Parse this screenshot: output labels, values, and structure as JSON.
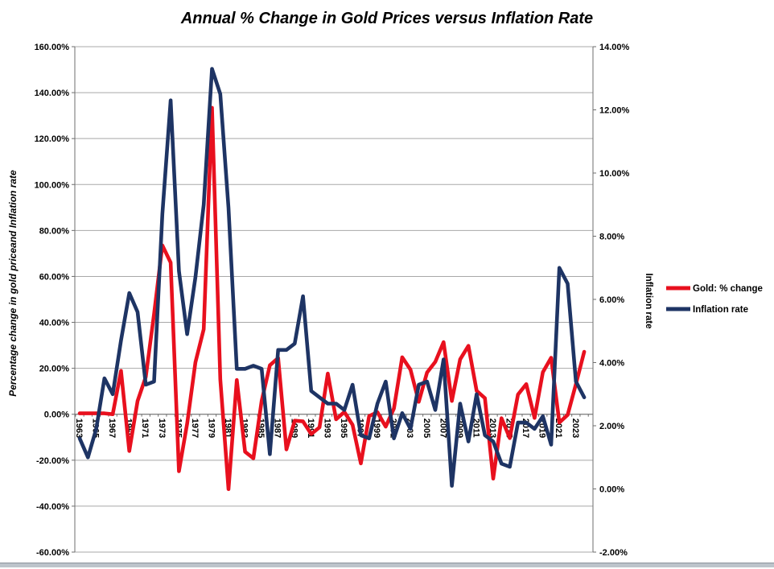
{
  "title": "Annual % Change in Gold Prices versus Inflation Rate",
  "chart_data": {
    "type": "line",
    "title": "Annual % Change in Gold Prices versus Inflation Rate",
    "years": [
      1963,
      1964,
      1965,
      1966,
      1967,
      1968,
      1969,
      1970,
      1971,
      1972,
      1973,
      1974,
      1975,
      1976,
      1977,
      1978,
      1979,
      1980,
      1981,
      1982,
      1983,
      1984,
      1985,
      1986,
      1987,
      1988,
      1989,
      1990,
      1991,
      1992,
      1993,
      1994,
      1995,
      1996,
      1997,
      1998,
      1999,
      2000,
      2001,
      2002,
      2003,
      2004,
      2005,
      2006,
      2007,
      2008,
      2009,
      2010,
      2011,
      2012,
      2013,
      2014,
      2015,
      2016,
      2017,
      2018,
      2019,
      2020,
      2021,
      2022,
      2023,
      2024
    ],
    "x_tick_labels": [
      "1963",
      "1965",
      "1967",
      "1969",
      "1971",
      "1973",
      "1975",
      "1977",
      "1979",
      "1981",
      "1983",
      "1985",
      "1987",
      "1989",
      "1991",
      "1993",
      "1995",
      "1997",
      "1999",
      "2001",
      "2003",
      "2005",
      "2007",
      "2009",
      "2011",
      "2013",
      "2015",
      "2017",
      "2019",
      "2021",
      "2023"
    ],
    "left_axis": {
      "label": "Percentage change in gold priceand Inflation rate",
      "min": -60,
      "max": 160,
      "step": 20,
      "tick_labels": [
        "160.00%",
        "140.00%",
        "120.00%",
        "100.00%",
        "80.00%",
        "60.00%",
        "40.00%",
        "20.00%",
        "0.00%",
        "-20.00%",
        "-40.00%",
        "-60.00%"
      ]
    },
    "right_axis": {
      "label": "Inflation rate",
      "min": -2,
      "max": 14,
      "step": 2,
      "tick_labels": [
        "14.00%",
        "12.00%",
        "10.00%",
        "8.00%",
        "6.00%",
        "4.00%",
        "2.00%",
        "0.00%",
        "-2.00%"
      ]
    },
    "series": [
      {
        "name": "Gold: % change",
        "axis": "left",
        "color": "#E8101E",
        "values": [
          0.4,
          0.4,
          0.4,
          0.4,
          0.0,
          18.9,
          -16.0,
          5.8,
          16.3,
          43.7,
          73.5,
          66.0,
          -24.8,
          -4.1,
          22.6,
          37.0,
          133.4,
          15.2,
          -32.6,
          14.9,
          -16.3,
          -19.2,
          5.8,
          21.3,
          24.5,
          -15.3,
          -2.8,
          -3.1,
          -8.6,
          -5.7,
          17.7,
          -2.2,
          1.0,
          -4.6,
          -21.4,
          -0.8,
          0.9,
          -5.4,
          2.5,
          24.8,
          19.4,
          5.4,
          18.2,
          22.8,
          31.4,
          5.8,
          23.9,
          29.8,
          10.2,
          7.0,
          -28.0,
          -1.7,
          -10.4,
          8.6,
          13.1,
          -1.6,
          18.3,
          24.6,
          -3.6,
          -0.3,
          13.1,
          27.2
        ]
      },
      {
        "name": "Inflation rate",
        "axis": "right",
        "color": "#1E3464",
        "values": [
          1.6,
          1.0,
          1.9,
          3.5,
          3.0,
          4.7,
          6.2,
          5.6,
          3.3,
          3.4,
          8.7,
          12.3,
          6.9,
          4.9,
          6.7,
          9.0,
          13.3,
          12.5,
          8.9,
          3.8,
          3.8,
          3.9,
          3.8,
          1.1,
          4.4,
          4.4,
          4.6,
          6.1,
          3.1,
          2.9,
          2.7,
          2.7,
          2.5,
          3.3,
          1.7,
          1.6,
          2.7,
          3.4,
          1.6,
          2.4,
          1.9,
          3.3,
          3.4,
          2.5,
          4.1,
          0.1,
          2.7,
          1.5,
          3.0,
          1.7,
          1.5,
          0.8,
          0.7,
          2.1,
          2.1,
          1.9,
          2.3,
          1.4,
          7.0,
          6.5,
          3.4,
          2.9
        ]
      }
    ],
    "grid": true,
    "legend_position": "right-middle",
    "legend": [
      "Gold: % change",
      "Inflation rate"
    ]
  },
  "colors": {
    "background": "#FFFFFF",
    "grid": "#A8A8A8",
    "axis": "#6E6E6E",
    "bottom_bar": "#BDC4CB",
    "bottom_bar_edge": "#8A929B"
  }
}
